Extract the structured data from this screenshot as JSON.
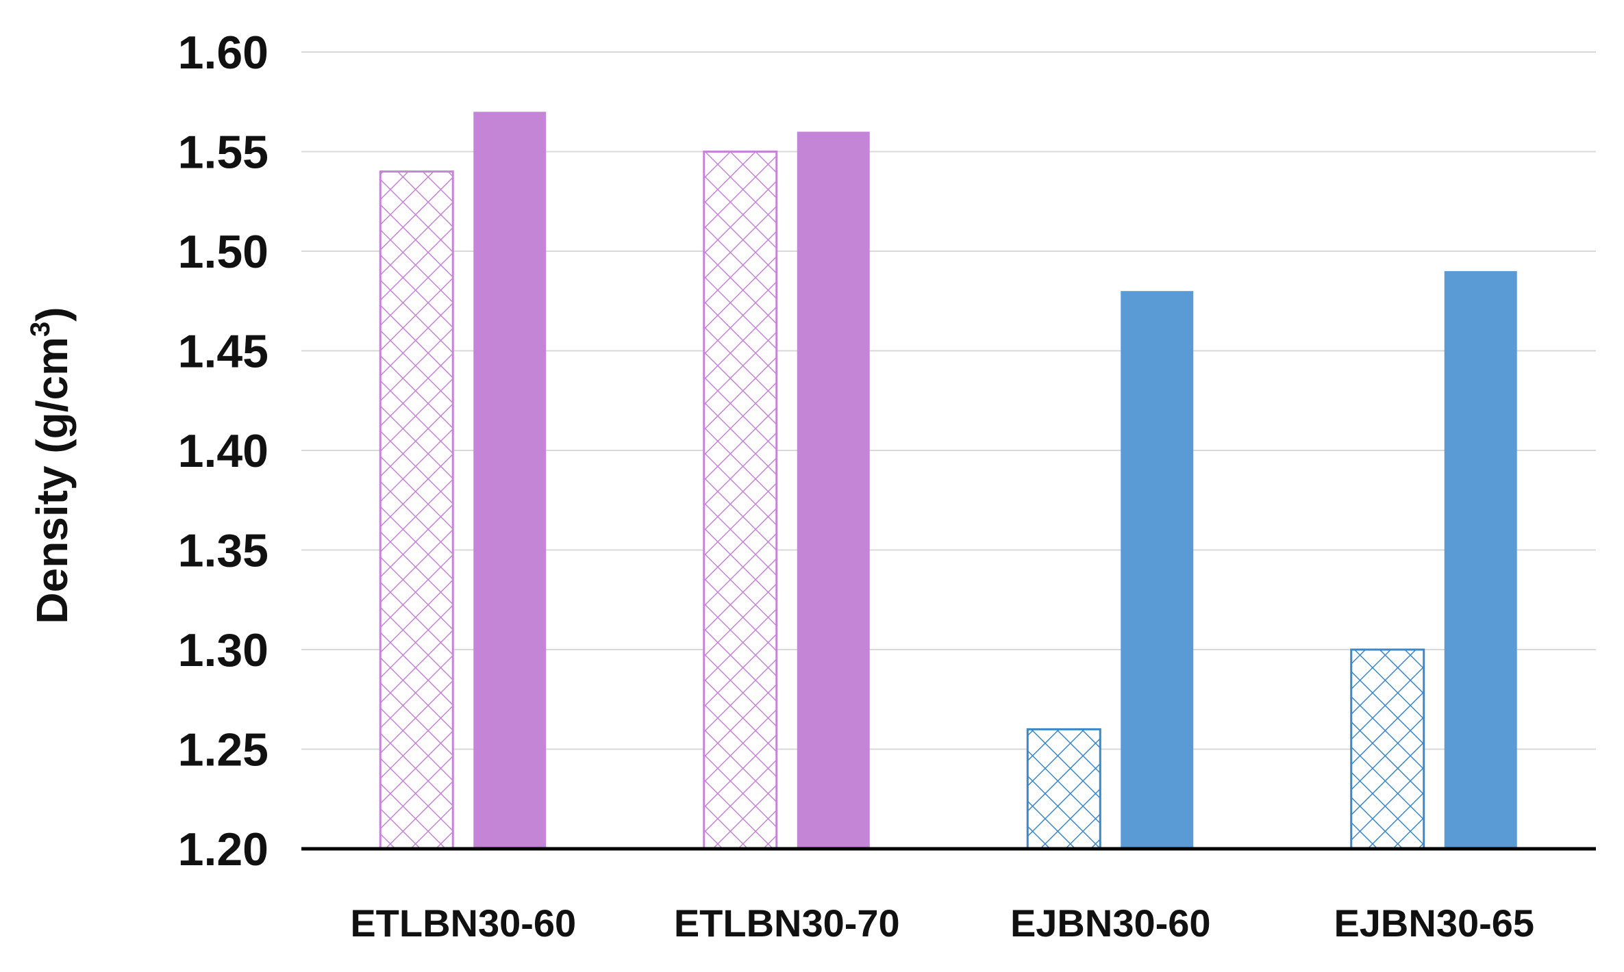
{
  "chart_data": {
    "type": "bar",
    "title": "",
    "xlabel": "",
    "ylabel": "Density (g/cm",
    "ylabel_superscript": "3",
    "ylabel_suffix": ")",
    "ylim": [
      1.2,
      1.6
    ],
    "yticks": [
      "1.20",
      "1.25",
      "1.30",
      "1.35",
      "1.40",
      "1.45",
      "1.50",
      "1.55",
      "1.60"
    ],
    "grid": true,
    "legend": "none",
    "categories": [
      "ETLBN30-60",
      "ETLBN30-70",
      "EJBN30-60",
      "EJBN30-65"
    ],
    "series": [
      {
        "fill": "crosshatch",
        "values": [
          1.54,
          1.55,
          1.26,
          1.3
        ],
        "colors": [
          "#c585d6",
          "#c585d6",
          "#3c87c7",
          "#3c87c7"
        ]
      },
      {
        "fill": "solid",
        "values": [
          1.57,
          1.56,
          1.48,
          1.49
        ],
        "colors": [
          "#c585d6",
          "#c585d6",
          "#5b9bd5",
          "#5b9bd5"
        ]
      }
    ],
    "colors": {
      "purple": "#c585d6",
      "blue": "#5b9bd5",
      "blue_hatch": "#3c87c7",
      "grid": "#d9d9d9",
      "axis": "#000000"
    }
  }
}
